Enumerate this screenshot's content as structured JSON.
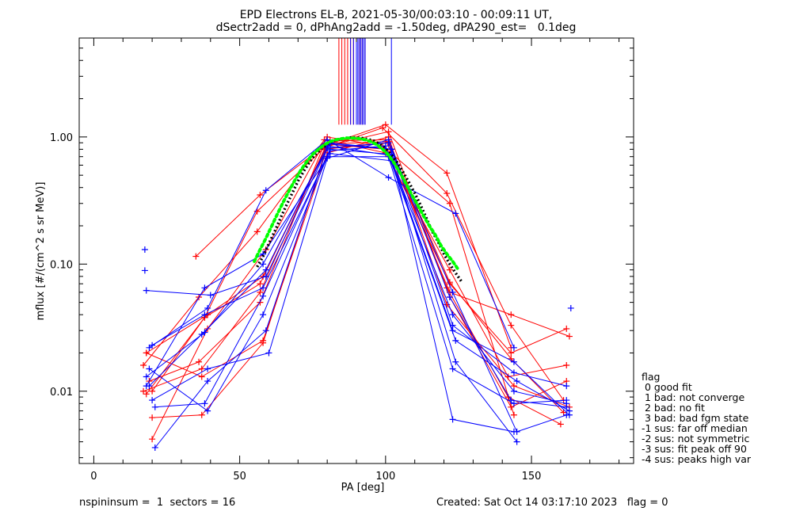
{
  "title_line1": "EPD Electrons EL-B, 2021-05-30/00:03:10 - 00:09:11 UT,",
  "title_line2": "dSectr2add = 0, dPhAng2add = -1.50deg, dPA290_est=   0.1deg",
  "footer": {
    "left": "nspininsum =  1  sectors = 16",
    "right": "Created: Sat Oct 14 03:17:10 2023   flag = 0"
  },
  "legend": {
    "title": "flag",
    "items": [
      " 0 good fit",
      " 1 bad: not converge",
      " 2 bad: no fit",
      " 3 bad: bad fgm state",
      "-1 sus: far off median",
      "-2 sus: not symmetric",
      "-3 sus: fit peak off 90",
      "-4 sus: peaks high var"
    ]
  },
  "colors": {
    "red": "#ff0000",
    "blue": "#0000ff",
    "green": "#00ff00",
    "black": "#000000"
  },
  "chart_data": {
    "type": "line",
    "xlabel": "PA [deg]",
    "ylabel": "mflux [#/(cm^2 s sr MeV)]",
    "xlim": [
      -5,
      185
    ],
    "ylim": [
      0.0027,
      6.0
    ],
    "yscale": "log",
    "xticks": [
      0,
      50,
      100,
      150
    ],
    "yticks": [
      0.01,
      0.1,
      1.0
    ],
    "ytick_labels": [
      "0.01",
      "0.10",
      "1.00"
    ],
    "series": [
      {
        "color": "red",
        "x": [
          18,
          39,
          58,
          81,
          100,
          122,
          143,
          163
        ],
        "y": [
          0.02,
          0.04,
          0.08,
          0.93,
          0.95,
          0.06,
          0.04,
          0.027
        ]
      },
      {
        "color": "red",
        "x": [
          35,
          57,
          79,
          100,
          121,
          143
        ],
        "y": [
          0.115,
          0.35,
          0.85,
          1.25,
          0.52,
          0.022
        ]
      },
      {
        "color": "red",
        "x": [
          17,
          37,
          57,
          79,
          101,
          122,
          143,
          161
        ],
        "y": [
          0.01,
          0.015,
          0.06,
          0.8,
          0.9,
          0.072,
          0.018,
          0.0068
        ]
      },
      {
        "color": "red",
        "x": [
          20,
          37,
          58,
          80,
          101,
          122,
          143,
          162
        ],
        "y": [
          0.0062,
          0.0065,
          0.024,
          0.85,
          1.1,
          0.055,
          0.0075,
          0.012
        ]
      },
      {
        "color": "red",
        "x": [
          20,
          39,
          59,
          80,
          99,
          122,
          144
        ],
        "y": [
          0.0042,
          0.031,
          0.13,
          1.0,
          0.85,
          0.3,
          0.0065
        ]
      },
      {
        "color": "red",
        "x": [
          18,
          38,
          57,
          80,
          101,
          121,
          142,
          160
        ],
        "y": [
          0.0095,
          0.038,
          0.07,
          0.88,
          0.92,
          0.065,
          0.009,
          0.0055
        ]
      },
      {
        "color": "red",
        "x": [
          17,
          36,
          56,
          79,
          100,
          122,
          142,
          162
        ],
        "y": [
          0.016,
          0.055,
          0.18,
          0.95,
          0.75,
          0.09,
          0.013,
          0.016
        ]
      },
      {
        "color": "red",
        "x": [
          18,
          37,
          58,
          80,
          101,
          121,
          144,
          163
        ],
        "y": [
          0.02,
          0.013,
          0.025,
          0.75,
          1.0,
          0.048,
          0.011,
          0.0075
        ]
      },
      {
        "color": "red",
        "x": [
          19,
          36,
          57,
          79,
          100,
          122,
          143,
          162
        ],
        "y": [
          0.012,
          0.017,
          0.05,
          0.88,
          0.8,
          0.07,
          0.02,
          0.031
        ]
      },
      {
        "color": "red",
        "x": [
          20,
          38,
          56,
          79,
          99,
          121,
          143,
          161
        ],
        "y": [
          0.01,
          0.038,
          0.26,
          0.82,
          1.18,
          0.36,
          0.033,
          0.0085
        ]
      },
      {
        "color": "blue",
        "x": [
          18,
          38,
          58,
          81,
          102,
          123,
          144,
          162
        ],
        "y": [
          0.013,
          0.029,
          0.1,
          0.88,
          0.8,
          0.033,
          0.014,
          0.011
        ]
      },
      {
        "color": "blue",
        "x": [
          19,
          39,
          59,
          80,
          101,
          124,
          144
        ],
        "y": [
          0.022,
          0.045,
          0.38,
          0.95,
          0.48,
          0.25,
          0.022
        ]
      },
      {
        "color": "blue",
        "x": [
          18,
          40,
          59,
          81,
          102,
          123,
          145,
          162
        ],
        "y": [
          0.062,
          0.057,
          0.08,
          0.9,
          0.8,
          0.06,
          0.0048,
          0.0065
        ]
      },
      {
        "color": "blue",
        "x": [
          19,
          39,
          58,
          80,
          101,
          123,
          144,
          162
        ],
        "y": [
          0.015,
          0.007,
          0.04,
          0.7,
          0.7,
          0.015,
          0.008,
          0.0085
        ]
      },
      {
        "color": "blue",
        "x": [
          21,
          38,
          58,
          81,
          102,
          123,
          144
        ],
        "y": [
          0.0075,
          0.008,
          0.056,
          0.8,
          0.73,
          0.006,
          0.0048
        ]
      },
      {
        "color": "blue",
        "x": [
          19,
          37,
          59,
          80,
          101,
          124,
          145,
          163
        ],
        "y": [
          0.011,
          0.028,
          0.09,
          0.85,
          0.72,
          0.025,
          0.012,
          0.007
        ]
      },
      {
        "color": "blue",
        "x": [
          20,
          38,
          58,
          81,
          100,
          123,
          144,
          162
        ],
        "y": [
          0.023,
          0.04,
          0.065,
          0.78,
          0.85,
          0.04,
          0.01,
          0.008
        ]
      },
      {
        "color": "blue",
        "x": [
          21,
          39,
          59,
          80,
          101,
          124,
          145
        ],
        "y": [
          0.0036,
          0.012,
          0.03,
          0.82,
          0.9,
          0.017,
          0.004
        ]
      },
      {
        "color": "blue",
        "x": [
          18,
          38,
          58,
          81,
          102,
          123,
          144,
          163
        ],
        "y": [
          0.011,
          0.065,
          0.12,
          0.74,
          0.65,
          0.03,
          0.017,
          0.0065
        ]
      },
      {
        "color": "blue",
        "x": [
          20,
          39,
          60,
          80,
          101,
          122,
          143,
          162
        ],
        "y": [
          0.0085,
          0.015,
          0.02,
          0.68,
          0.95,
          0.055,
          0.0085,
          0.0075
        ]
      }
    ],
    "outliers": [
      {
        "color": "blue",
        "x": 17.5,
        "y": 0.13
      },
      {
        "color": "blue",
        "x": 17.5,
        "y": 0.089
      },
      {
        "color": "blue",
        "x": 163.5,
        "y": 0.045
      }
    ],
    "spikes_red_x": [
      84,
      85,
      86,
      87,
      88,
      89,
      90,
      91,
      92,
      93
    ],
    "spikes_blue_x": [
      88,
      89,
      90,
      90.5,
      91,
      91.5,
      92,
      92.5,
      93,
      102
    ],
    "fit_green": {
      "x": [
        55,
        57,
        59,
        61,
        63,
        65,
        67,
        69,
        71,
        73,
        75,
        77,
        79,
        81,
        83,
        85,
        87,
        89,
        91,
        93,
        95,
        97,
        99,
        101,
        103,
        105,
        107,
        109,
        111,
        113,
        115,
        117,
        119,
        121,
        123,
        125
      ],
      "y": [
        0.105,
        0.13,
        0.16,
        0.2,
        0.25,
        0.31,
        0.38,
        0.46,
        0.55,
        0.64,
        0.73,
        0.8,
        0.87,
        0.92,
        0.95,
        0.97,
        0.98,
        0.98,
        0.97,
        0.95,
        0.92,
        0.87,
        0.8,
        0.72,
        0.62,
        0.52,
        0.43,
        0.35,
        0.29,
        0.24,
        0.2,
        0.17,
        0.14,
        0.12,
        0.105,
        0.09
      ]
    },
    "fit_black": {
      "x": [
        56,
        58,
        60,
        62,
        64,
        66,
        68,
        70,
        72,
        74,
        76,
        78,
        80,
        82,
        84,
        86,
        88,
        90,
        92,
        94,
        96,
        98,
        100,
        102,
        104,
        106,
        108,
        110,
        112,
        114,
        116,
        118,
        120,
        122,
        124,
        126
      ],
      "y": [
        0.095,
        0.115,
        0.145,
        0.18,
        0.23,
        0.29,
        0.36,
        0.45,
        0.54,
        0.64,
        0.73,
        0.81,
        0.88,
        0.93,
        0.96,
        0.98,
        0.99,
        0.99,
        0.98,
        0.96,
        0.93,
        0.88,
        0.81,
        0.72,
        0.63,
        0.53,
        0.44,
        0.36,
        0.29,
        0.23,
        0.18,
        0.15,
        0.12,
        0.1,
        0.085,
        0.073
      ]
    }
  }
}
